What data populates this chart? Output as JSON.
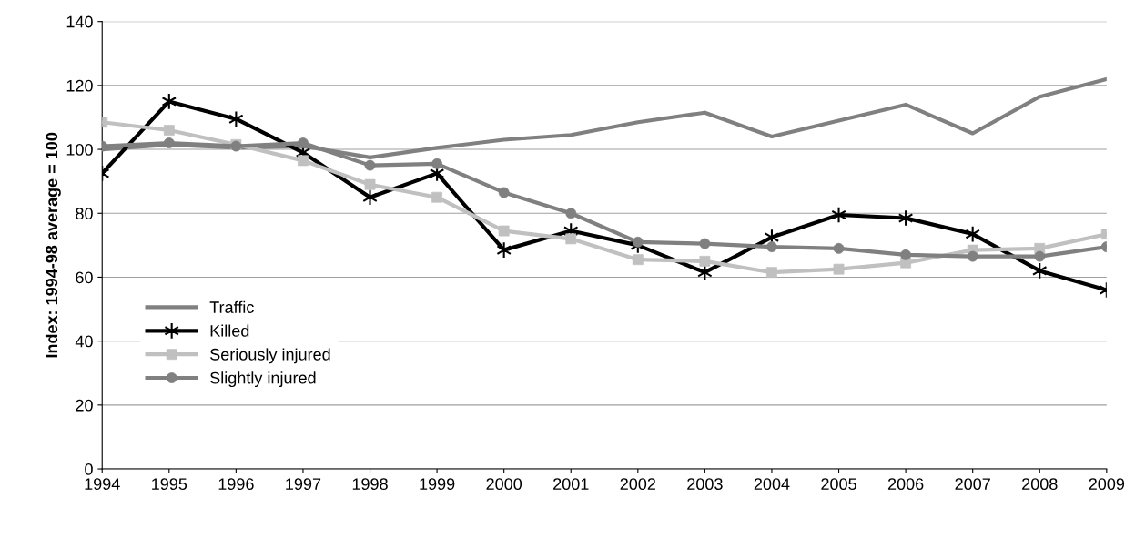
{
  "chart_data": {
    "type": "line",
    "ylabel": "Index: 1994-98 average = 100",
    "categories": [
      "1994",
      "1995",
      "1996",
      "1997",
      "1998",
      "1999",
      "2000",
      "2001",
      "2002",
      "2003",
      "2004",
      "2005",
      "2006",
      "2007",
      "2008",
      "2009"
    ],
    "series": [
      {
        "name": "Traffic",
        "color": "#808080",
        "marker": "none",
        "values": [
          100,
          101.5,
          100.5,
          101,
          97.5,
          100.5,
          103,
          104.5,
          108.5,
          111.5,
          104,
          109,
          114,
          105,
          116.5,
          122
        ]
      },
      {
        "name": "Killed",
        "color": "#000000",
        "marker": "cross",
        "values": [
          92.5,
          115,
          109.5,
          99,
          85,
          92.5,
          68.5,
          74.5,
          70,
          61.5,
          72.5,
          79.5,
          78.5,
          73.5,
          62,
          56
        ]
      },
      {
        "name": "Seriously injured",
        "color": "#c0c0c0",
        "marker": "square",
        "values": [
          108.5,
          106,
          101.5,
          96.5,
          89,
          85,
          74.5,
          72,
          65.5,
          65,
          61.5,
          62.5,
          64.5,
          68.5,
          69,
          73.5
        ]
      },
      {
        "name": "Slightly injured",
        "color": "#808080",
        "marker": "circle",
        "values": [
          101,
          102,
          101,
          102,
          95,
          95.5,
          86.5,
          80,
          71,
          70.5,
          69.5,
          69,
          67,
          66.5,
          66.5,
          69.5
        ]
      }
    ],
    "ylim": [
      0,
      140
    ],
    "yticks": [
      0,
      20,
      40,
      60,
      80,
      100,
      120,
      140
    ],
    "grid": "y",
    "legend": "bottom left",
    "line_style": "solid"
  }
}
